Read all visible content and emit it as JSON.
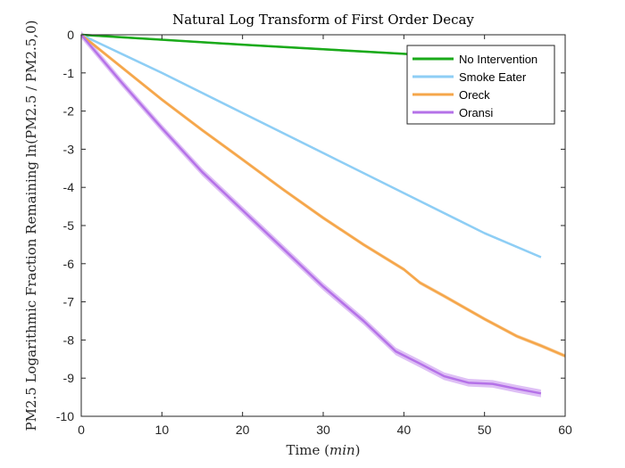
{
  "chart_data": {
    "type": "line",
    "title": "Natural Log Transform of First Order Decay",
    "xlabel": {
      "prefix": "Time ",
      "unit": "min"
    },
    "ylabel": {
      "text": "PM2.5 Logarithmic Fraction Remaining ln(PM2.5 / PM2.5,0)"
    },
    "xlim": [
      0,
      60
    ],
    "ylim": [
      -10,
      0
    ],
    "xticks": [
      0,
      10,
      20,
      30,
      40,
      50,
      60
    ],
    "yticks": [
      0,
      -1,
      -2,
      -3,
      -4,
      -5,
      -6,
      -7,
      -8,
      -9,
      -10
    ],
    "grid": false,
    "legend_position": "top-right",
    "series": [
      {
        "name": "No Intervention",
        "color": "#1aaa1a",
        "band": 0.03,
        "x": [
          0,
          10,
          20,
          30,
          40,
          45
        ],
        "y": [
          0,
          -0.13,
          -0.26,
          -0.38,
          -0.5,
          -0.57
        ]
      },
      {
        "name": "Smoke Eater",
        "color": "#8ecef5",
        "band": 0.03,
        "x": [
          0,
          10,
          20,
          30,
          40,
          50,
          57
        ],
        "y": [
          0,
          -1.0,
          -2.05,
          -3.1,
          -4.15,
          -5.2,
          -5.83
        ]
      },
      {
        "name": "Oreck",
        "color": "#f5a64a",
        "band": 0.05,
        "x": [
          0,
          5,
          10,
          15,
          20,
          25,
          30,
          35,
          40,
          42,
          45,
          50,
          54,
          57,
          60
        ],
        "y": [
          0,
          -0.85,
          -1.7,
          -2.5,
          -3.27,
          -4.05,
          -4.8,
          -5.5,
          -6.15,
          -6.5,
          -6.85,
          -7.45,
          -7.9,
          -8.15,
          -8.42
        ]
      },
      {
        "name": "Oransi",
        "color": "#b572e8",
        "band": 0.1,
        "x": [
          0,
          5,
          10,
          15,
          20,
          25,
          30,
          35,
          39,
          42,
          45,
          48,
          51,
          54,
          57
        ],
        "y": [
          0,
          -1.25,
          -2.45,
          -3.6,
          -4.6,
          -5.6,
          -6.6,
          -7.5,
          -8.3,
          -8.62,
          -8.95,
          -9.12,
          -9.15,
          -9.28,
          -9.4
        ]
      }
    ]
  }
}
